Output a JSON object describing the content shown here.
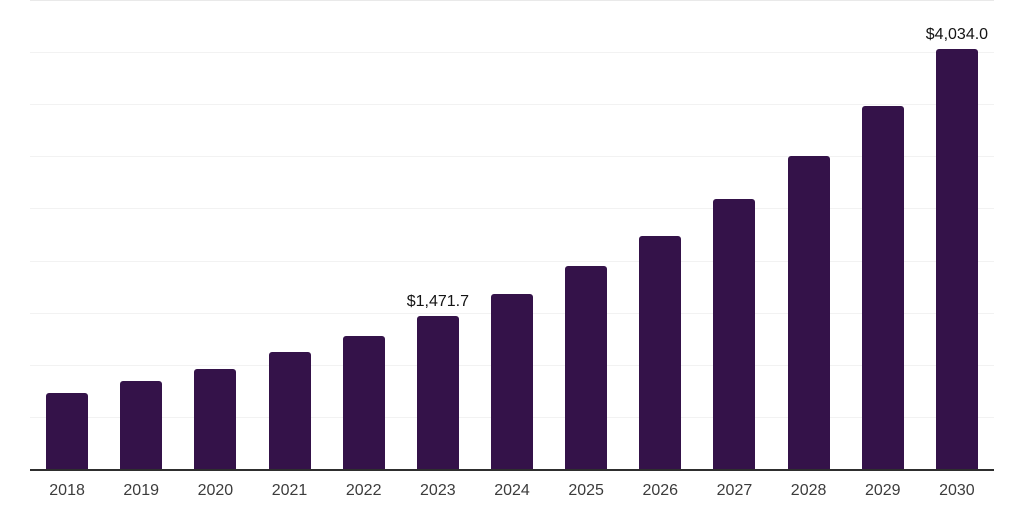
{
  "chart_data": {
    "type": "bar",
    "categories": [
      "2018",
      "2019",
      "2020",
      "2021",
      "2022",
      "2023",
      "2024",
      "2025",
      "2026",
      "2027",
      "2028",
      "2029",
      "2030"
    ],
    "values": [
      730,
      845,
      960,
      1120,
      1280,
      1471.7,
      1680,
      1950,
      2240,
      2590,
      3000,
      3480,
      4034
    ],
    "point_labels": [
      "",
      "",
      "",
      "",
      "",
      "$1,471.7",
      "",
      "",
      "",
      "",
      "",
      "",
      "$4,034.0"
    ],
    "title": "",
    "xlabel": "",
    "ylabel": "",
    "ylim": [
      0,
      4500
    ],
    "grid": true,
    "grid_step": 500,
    "legend_position": "none",
    "colors": {
      "bar": "#341249",
      "axis_line": "#2e2e2e",
      "gridline": "#f2f2f2",
      "top_gridline": "#e9e9e9",
      "tick_label": "#3c3c3c",
      "value_label": "#141414",
      "background": "#ffffff"
    }
  }
}
